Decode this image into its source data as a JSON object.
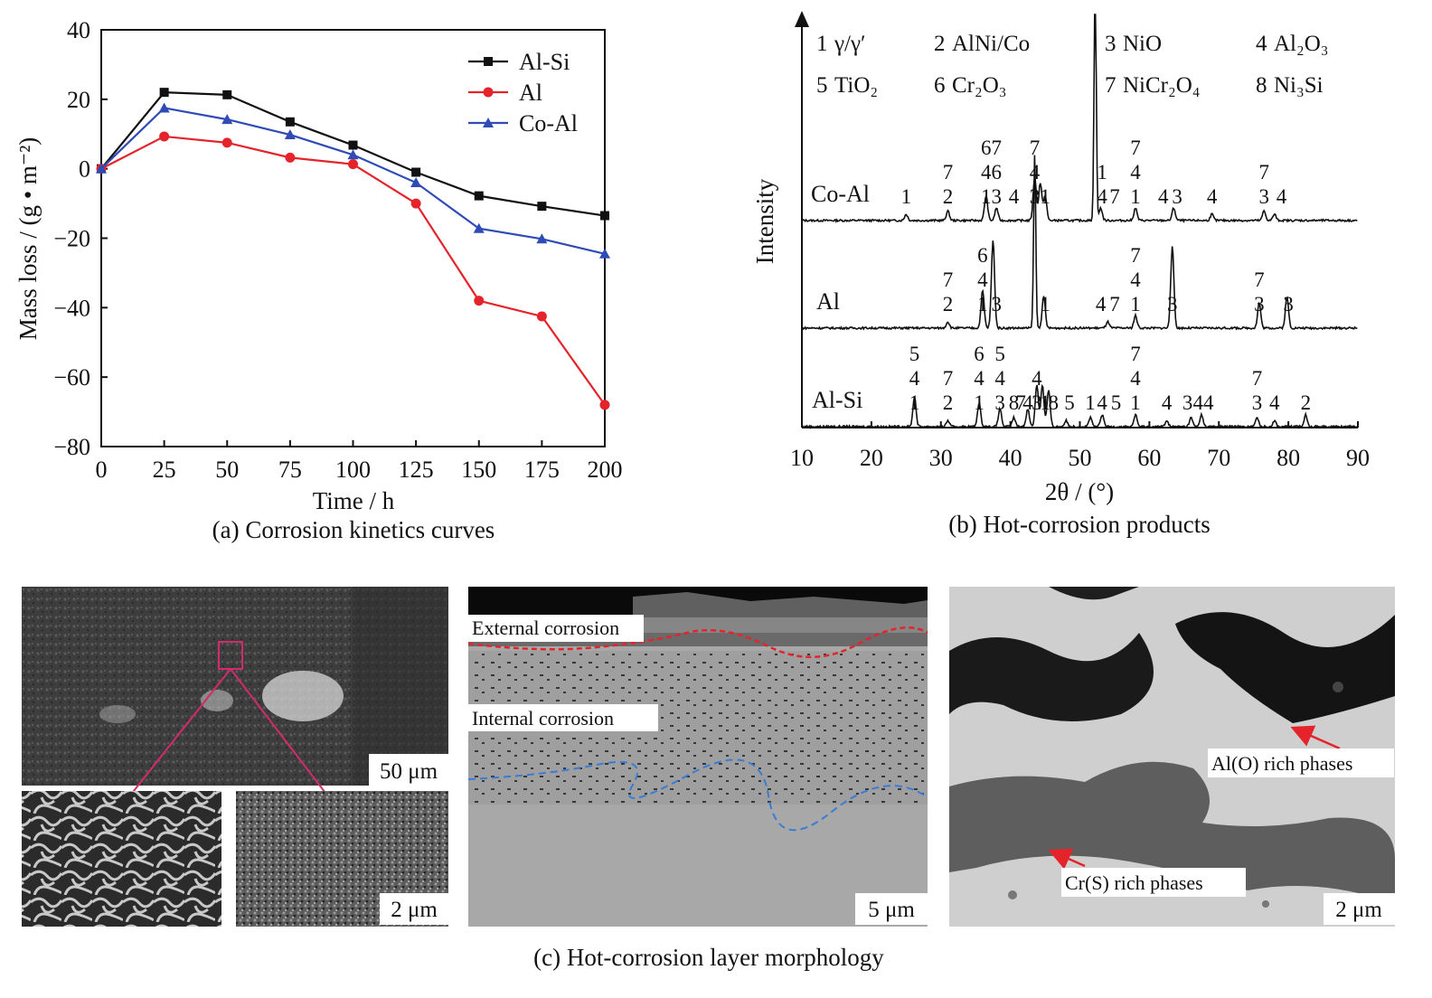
{
  "chart_data": [
    {
      "type": "line",
      "caption": "(a) Corrosion kinetics curves",
      "xlabel": "Time / h",
      "ylabel": "Mass loss / (g • m⁻²)",
      "xlim": [
        0,
        200
      ],
      "ylim": [
        -80,
        40
      ],
      "xticks": [
        0,
        25,
        50,
        75,
        100,
        125,
        150,
        175,
        200
      ],
      "yticks": [
        40,
        20,
        0,
        -20,
        -40,
        -60,
        -80
      ],
      "xtick_labels": [
        "0",
        "25",
        "50",
        "75",
        "100",
        "125",
        "150",
        "175",
        "200"
      ],
      "ytick_labels": [
        "40",
        "20",
        "0",
        "−20",
        "−40",
        "−60",
        "−80"
      ],
      "legend_position": "top-right",
      "x": [
        0,
        25,
        50,
        75,
        100,
        125,
        150,
        175,
        200
      ],
      "series": [
        {
          "name": "Al-Si",
          "color": "#111111",
          "marker": "square",
          "values": [
            0,
            22,
            21.3,
            13.5,
            6.8,
            -1,
            -7.8,
            -10.8,
            -13.5
          ]
        },
        {
          "name": "Al",
          "color": "#e5232b",
          "marker": "circle",
          "values": [
            0,
            9.3,
            7.5,
            3.2,
            1.3,
            -10,
            -38,
            -42.5,
            -68
          ]
        },
        {
          "name": "Co-Al",
          "color": "#2f4bb5",
          "marker": "triangle",
          "values": [
            0,
            17.5,
            14.2,
            9.8,
            4,
            -4,
            -17.2,
            -20.2,
            -24.5
          ]
        }
      ]
    },
    {
      "type": "line",
      "caption": "(b) Hot-corrosion products",
      "xlabel": "2θ / (°)",
      "ylabel": "Intensity",
      "xlim": [
        10,
        90
      ],
      "xticks": [
        10,
        20,
        30,
        40,
        50,
        60,
        70,
        80,
        90
      ],
      "xtick_labels": [
        "10",
        "20",
        "30",
        "40",
        "50",
        "60",
        "70",
        "80",
        "90"
      ],
      "phase_legend": [
        {
          "id": "1",
          "name": "γ/γ′"
        },
        {
          "id": "2",
          "name": "AlNi/Co"
        },
        {
          "id": "3",
          "name": "NiO"
        },
        {
          "id": "4",
          "name": "Al₂O₃"
        },
        {
          "id": "5",
          "name": "TiO₂"
        },
        {
          "id": "6",
          "name": "Cr₂O₃"
        },
        {
          "id": "7",
          "name": "NiCr₂O₄"
        },
        {
          "id": "8",
          "name": "Ni₃Si"
        }
      ],
      "series": [
        {
          "name": "Co-Al",
          "peaks": [
            [
              25,
              1
            ],
            [
              31,
              1.5
            ],
            [
              36.5,
              4
            ],
            [
              38,
              2
            ],
            [
              43.5,
              7
            ],
            [
              44.3,
              6
            ],
            [
              45,
              4
            ],
            [
              52.2,
              40
            ],
            [
              53,
              2
            ],
            [
              58,
              2
            ],
            [
              63.5,
              2
            ],
            [
              69,
              1
            ],
            [
              76.5,
              1.5
            ],
            [
              78,
              1
            ]
          ],
          "annotations": [
            {
              "x": 25,
              "labels": [
                "1"
              ]
            },
            {
              "x": 31,
              "labels": [
                "7",
                "2"
              ]
            },
            {
              "x": 36.5,
              "labels": [
                "6",
                "4",
                "1"
              ]
            },
            {
              "x": 38,
              "labels": [
                "7",
                "6",
                "3"
              ]
            },
            {
              "x": 40.5,
              "labels": [
                "4"
              ]
            },
            {
              "x": 43.5,
              "labels": [
                "7",
                "4",
                "3"
              ]
            },
            {
              "x": 45,
              "labels": [
                "1"
              ]
            },
            {
              "x": 53.2,
              "labels": [
                "1",
                "4"
              ]
            },
            {
              "x": 55,
              "labels": [
                "7"
              ]
            },
            {
              "x": 58,
              "labels": [
                "7",
                "4",
                "1"
              ]
            },
            {
              "x": 62,
              "labels": [
                "4"
              ]
            },
            {
              "x": 64,
              "labels": [
                "3"
              ]
            },
            {
              "x": 69,
              "labels": [
                "4"
              ]
            },
            {
              "x": 76.5,
              "labels": [
                "7",
                "3"
              ]
            },
            {
              "x": 79,
              "labels": [
                "4"
              ]
            }
          ]
        },
        {
          "name": "Al",
          "peaks": [
            [
              31,
              1
            ],
            [
              36,
              6
            ],
            [
              37.5,
              14
            ],
            [
              43.5,
              28
            ],
            [
              44.8,
              5
            ],
            [
              54,
              1
            ],
            [
              58,
              2
            ],
            [
              63.3,
              13
            ],
            [
              75.8,
              4
            ],
            [
              79.8,
              5
            ]
          ],
          "annotations": [
            {
              "x": 31,
              "labels": [
                "7",
                "2"
              ]
            },
            {
              "x": 36,
              "labels": [
                "6",
                "4",
                "1"
              ]
            },
            {
              "x": 38,
              "labels": [
                "3"
              ]
            },
            {
              "x": 45,
              "labels": [
                "1"
              ]
            },
            {
              "x": 53,
              "labels": [
                "4"
              ]
            },
            {
              "x": 55,
              "labels": [
                "7"
              ]
            },
            {
              "x": 58,
              "labels": [
                "7",
                "4",
                "1"
              ]
            },
            {
              "x": 63.3,
              "labels": [
                "3"
              ]
            },
            {
              "x": 75.8,
              "labels": [
                "7",
                "3"
              ]
            },
            {
              "x": 80,
              "labels": [
                "3"
              ]
            }
          ]
        },
        {
          "name": "Al-Si",
          "peaks": [
            [
              26.2,
              5
            ],
            [
              31,
              1
            ],
            [
              35.5,
              4
            ],
            [
              38.5,
              3
            ],
            [
              40.5,
              1.5
            ],
            [
              42.5,
              3
            ],
            [
              43.8,
              7
            ],
            [
              44.6,
              7
            ],
            [
              45.5,
              6
            ],
            [
              48,
              1
            ],
            [
              51.5,
              1.5
            ],
            [
              53.2,
              2
            ],
            [
              58,
              2
            ],
            [
              62.5,
              1
            ],
            [
              66,
              1.5
            ],
            [
              67.5,
              2
            ],
            [
              75.5,
              1.5
            ],
            [
              78,
              1
            ],
            [
              82.5,
              2
            ]
          ],
          "annotations": [
            {
              "x": 26.2,
              "labels": [
                "5",
                "4",
                "1"
              ]
            },
            {
              "x": 31,
              "labels": [
                "7",
                "2"
              ]
            },
            {
              "x": 35.5,
              "labels": [
                "6",
                "4",
                "1"
              ]
            },
            {
              "x": 38.5,
              "labels": [
                "5",
                "4",
                "3"
              ]
            },
            {
              "x": 40.5,
              "labels": [
                "8"
              ]
            },
            {
              "x": 41.5,
              "labels": [
                "7"
              ]
            },
            {
              "x": 42.5,
              "labels": [
                "4"
              ]
            },
            {
              "x": 43.8,
              "labels": [
                "4",
                "3"
              ]
            },
            {
              "x": 45,
              "labels": [
                "1"
              ]
            },
            {
              "x": 46.2,
              "labels": [
                "8"
              ]
            },
            {
              "x": 48.5,
              "labels": [
                "5"
              ]
            },
            {
              "x": 51.5,
              "labels": [
                "1"
              ]
            },
            {
              "x": 53.2,
              "labels": [
                "4"
              ]
            },
            {
              "x": 55.2,
              "labels": [
                "5"
              ]
            },
            {
              "x": 58,
              "labels": [
                "7",
                "4",
                "1"
              ]
            },
            {
              "x": 62.5,
              "labels": [
                "4"
              ]
            },
            {
              "x": 65.5,
              "labels": [
                "3"
              ]
            },
            {
              "x": 67,
              "labels": [
                "4"
              ]
            },
            {
              "x": 68.5,
              "labels": [
                "4"
              ]
            },
            {
              "x": 75.5,
              "labels": [
                "7",
                "3"
              ]
            },
            {
              "x": 78,
              "labels": [
                "4"
              ]
            },
            {
              "x": 82.5,
              "labels": [
                "2"
              ]
            }
          ]
        }
      ]
    }
  ],
  "micrographs": {
    "caption": "(c) Hot-corrosion layer morphology",
    "surface": {
      "scale_main": "50 μm",
      "scale_inset": "2 μm"
    },
    "cross_section": {
      "label_external": "External corrosion",
      "label_internal": "Internal corrosion",
      "scale": "5 μm"
    },
    "detail": {
      "label_al": "Al(O) rich phases",
      "label_cr": "Cr(S) rich phases",
      "scale": "2 μm"
    }
  }
}
